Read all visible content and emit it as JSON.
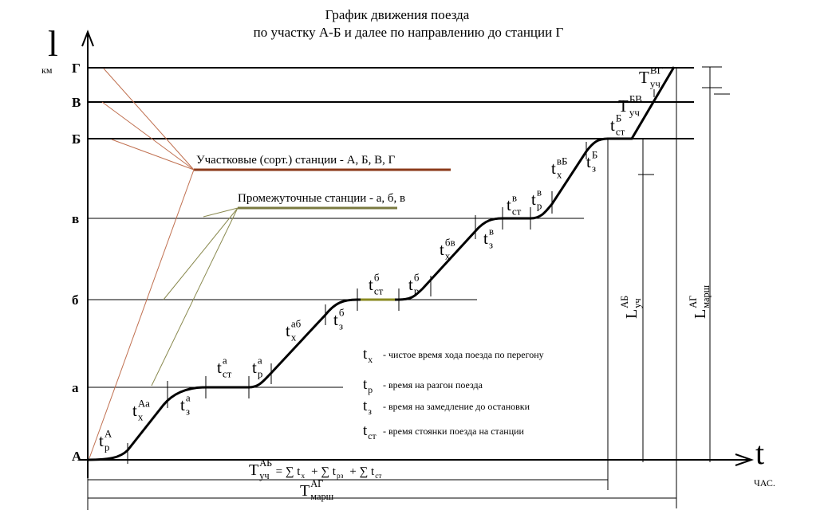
{
  "title": [
    "График движения поезда",
    "по участку А-Б и далее по направлению до станции  Г"
  ],
  "y_axis": {
    "symbol": "l",
    "unit": "км"
  },
  "x_axis": {
    "symbol": "t",
    "unit": "ЧАС."
  },
  "stations": [
    "Г",
    "В",
    "Б",
    "в",
    "б",
    "а",
    "А"
  ],
  "legend": [
    "Участковые (сорт.) станции - А, Б, В, Г",
    "Промежуточные станции  - а, б, в"
  ],
  "time_labels": [
    {
      "main": "t",
      "sub": "р",
      "sup": "А"
    },
    {
      "main": "t",
      "sub": "х",
      "sup": "Аа"
    },
    {
      "main": "t",
      "sub": "з",
      "sup": "а"
    },
    {
      "main": "t",
      "sub": "ст",
      "sup": "а"
    },
    {
      "main": "t",
      "sub": "р",
      "sup": "а"
    },
    {
      "main": "t",
      "sub": "х",
      "sup": "аб"
    },
    {
      "main": "t",
      "sub": "з",
      "sup": "б"
    },
    {
      "main": "t",
      "sub": "ст",
      "sup": "б"
    },
    {
      "main": "t",
      "sub": "р",
      "sup": "б"
    },
    {
      "main": "t",
      "sub": "х",
      "sup": "бв"
    },
    {
      "main": "t",
      "sub": "з",
      "sup": "в"
    },
    {
      "main": "t",
      "sub": "ст",
      "sup": "в"
    },
    {
      "main": "t",
      "sub": "р",
      "sup": "в"
    },
    {
      "main": "t",
      "sub": "х",
      "sup": "вБ"
    },
    {
      "main": "t",
      "sub": "з",
      "sup": "Б"
    },
    {
      "main": "t",
      "sub": "ст",
      "sup": "Б"
    },
    {
      "main": "T",
      "sub": "уч",
      "sup": "БВ"
    },
    {
      "main": "T",
      "sub": "уч",
      "sup": "ВГ"
    }
  ],
  "definitions": [
    {
      "main": "t",
      "sub": "х",
      "text": "- чистое время хода поезда по перегону"
    },
    {
      "main": "t",
      "sub": "р",
      "text": "- время на разгон поезда"
    },
    {
      "main": "t",
      "sub": "з",
      "text": "- время на замедление до остановки"
    },
    {
      "main": "t",
      "sub": "ст",
      "text": "- время стоянки поезда на станции"
    }
  ],
  "formula": {
    "main": "T",
    "sub": "уч",
    "sup": "АБ",
    "parts": [
      {
        "main": "= ∑ t",
        "sub": "х"
      },
      {
        "main": "+ ∑ t",
        "sub": "рз"
      },
      {
        "main": "+ ∑ t",
        "sub": "ст"
      }
    ]
  },
  "route_time": {
    "main": "T",
    "sub": "марш",
    "sup": "АГ"
  },
  "section_length": {
    "main": "L",
    "sub": "уч",
    "sup": "АБ"
  },
  "route_length": {
    "main": "L",
    "sub": "марш",
    "sup": "АГ"
  }
}
